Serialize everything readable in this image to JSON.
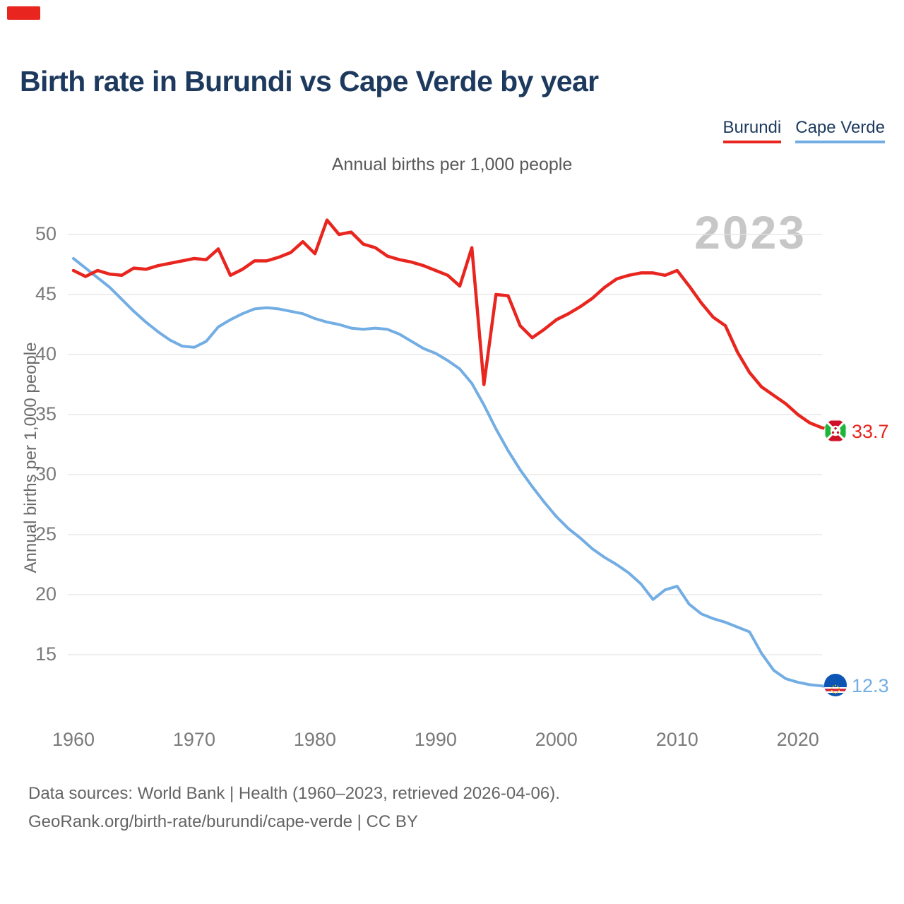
{
  "branding": {
    "logo_color": "#e8251e"
  },
  "header": {
    "title": "Birth rate in Burundi vs Cape Verde by year"
  },
  "legend": {
    "items": [
      {
        "label": "Burundi",
        "color": "#e8251e"
      },
      {
        "label": "Cape Verde",
        "color": "#72ade3"
      }
    ]
  },
  "subtitle": "Annual births per 1,000 people",
  "watermark": "2023",
  "chart_data": {
    "type": "line",
    "title": "Birth rate in Burundi vs Cape Verde by year",
    "subtitle": "Annual births per 1,000 people",
    "ylabel": "Annual births per 1,000 people",
    "xlabel": "",
    "xlim": [
      1960,
      2023
    ],
    "ylim": [
      10,
      52.5
    ],
    "grid": "horizontal",
    "legend_position": "top-right",
    "yticks": [
      15,
      20,
      25,
      30,
      35,
      40,
      45,
      50
    ],
    "xticks": [
      1960,
      1970,
      1980,
      1990,
      2000,
      2010,
      2020
    ],
    "x": [
      1960,
      1961,
      1962,
      1963,
      1964,
      1965,
      1966,
      1967,
      1968,
      1969,
      1970,
      1971,
      1972,
      1973,
      1974,
      1975,
      1976,
      1977,
      1978,
      1979,
      1980,
      1981,
      1982,
      1983,
      1984,
      1985,
      1986,
      1987,
      1988,
      1989,
      1990,
      1991,
      1992,
      1993,
      1994,
      1995,
      1996,
      1997,
      1998,
      1999,
      2000,
      2001,
      2002,
      2003,
      2004,
      2005,
      2006,
      2007,
      2008,
      2009,
      2010,
      2011,
      2012,
      2013,
      2014,
      2015,
      2016,
      2017,
      2018,
      2019,
      2020,
      2021,
      2022,
      2023
    ],
    "series": [
      {
        "name": "Burundi",
        "color": "#e8251e",
        "end_label": "33.7",
        "end_value": 33.7,
        "values": [
          47.0,
          46.5,
          47.0,
          46.7,
          46.6,
          47.2,
          47.1,
          47.4,
          47.6,
          47.8,
          48.0,
          47.9,
          48.8,
          46.6,
          47.1,
          47.8,
          47.8,
          48.1,
          48.5,
          49.4,
          48.4,
          51.2,
          50.0,
          50.2,
          49.2,
          48.9,
          48.2,
          47.9,
          47.7,
          47.4,
          47.0,
          46.6,
          45.7,
          48.9,
          37.5,
          45.0,
          44.9,
          42.4,
          41.4,
          42.1,
          42.9,
          43.4,
          44.0,
          44.7,
          45.6,
          46.3,
          46.6,
          46.8,
          46.8,
          46.6,
          47.0,
          45.7,
          44.3,
          43.1,
          42.4,
          40.2,
          38.5,
          37.3,
          36.6,
          35.9,
          35.0,
          34.3,
          33.9,
          33.7
        ]
      },
      {
        "name": "Cape Verde",
        "color": "#72ade3",
        "end_label": "12.3",
        "end_value": 12.3,
        "values": [
          48.0,
          47.2,
          46.4,
          45.6,
          44.6,
          43.6,
          42.7,
          41.9,
          41.2,
          40.7,
          40.6,
          41.1,
          42.3,
          42.9,
          43.4,
          43.8,
          43.9,
          43.8,
          43.6,
          43.4,
          43.0,
          42.7,
          42.5,
          42.2,
          42.1,
          42.2,
          42.1,
          41.7,
          41.1,
          40.5,
          40.1,
          39.5,
          38.8,
          37.6,
          35.8,
          33.8,
          32.0,
          30.4,
          29.0,
          27.7,
          26.5,
          25.5,
          24.7,
          23.8,
          23.1,
          22.5,
          21.8,
          20.9,
          19.6,
          20.4,
          20.7,
          19.2,
          18.4,
          18.0,
          17.7,
          17.3,
          16.9,
          15.1,
          13.7,
          13.0,
          12.7,
          12.5,
          12.4,
          12.3
        ]
      }
    ]
  },
  "footer": {
    "line1": "Data sources: World Bank | Health (1960–2023, retrieved 2026-04-06).",
    "line2": "GeoRank.org/birth-rate/burundi/cape-verde | CC BY"
  }
}
